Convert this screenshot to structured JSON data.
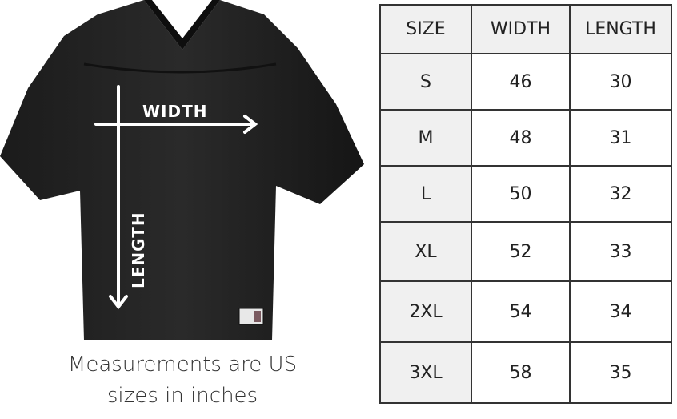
{
  "diagram": {
    "width_label": "WIDTH",
    "length_label": "LENGTH",
    "garment_color": "#1a1a1a",
    "arrow_color": "#ffffff"
  },
  "caption": {
    "line1": "Measurements are US",
    "line2": "sizes in inches"
  },
  "table": {
    "headers": [
      "SIZE",
      "WIDTH",
      "LENGTH"
    ],
    "rows": [
      [
        "S",
        "46",
        "30"
      ],
      [
        "M",
        "48",
        "31"
      ],
      [
        "L",
        "50",
        "32"
      ],
      [
        "XL",
        "52",
        "33"
      ],
      [
        "2XL",
        "54",
        "34"
      ],
      [
        "3XL",
        "58",
        "35"
      ]
    ]
  }
}
